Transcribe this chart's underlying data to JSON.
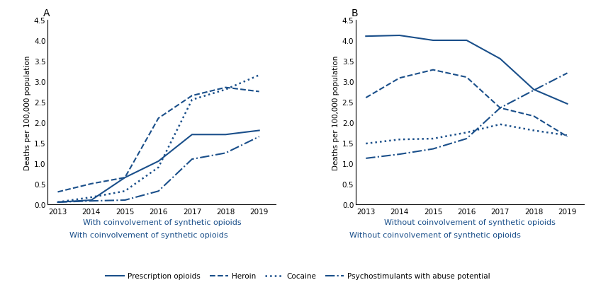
{
  "years": [
    2013,
    2014,
    2015,
    2016,
    2017,
    2018,
    2019
  ],
  "panel_A": {
    "title": "A",
    "xlabel": "With coinvolvement of synthetic opioids",
    "ylabel": "Deaths per 100,000 population",
    "prescription_opioids": [
      0.05,
      0.1,
      0.65,
      1.05,
      1.7,
      1.7,
      1.8
    ],
    "heroin": [
      0.3,
      0.5,
      0.65,
      2.1,
      2.65,
      2.85,
      2.75
    ],
    "cocaine": [
      0.05,
      0.17,
      0.32,
      0.9,
      2.55,
      2.8,
      3.15
    ],
    "psychostimulants": [
      0.05,
      0.08,
      0.1,
      0.32,
      1.1,
      1.25,
      1.65
    ]
  },
  "panel_B": {
    "title": "B",
    "xlabel": "Without coinvolvement of synthetic opioids",
    "ylabel": "Deaths per 100,000 population",
    "prescription_opioids": [
      4.1,
      4.12,
      4.0,
      4.0,
      3.55,
      2.8,
      2.45
    ],
    "heroin": [
      2.6,
      3.08,
      3.28,
      3.1,
      2.35,
      2.15,
      1.65
    ],
    "cocaine": [
      1.48,
      1.58,
      1.6,
      1.75,
      1.95,
      1.8,
      1.68
    ],
    "psychostimulants": [
      1.12,
      1.22,
      1.35,
      1.6,
      2.35,
      2.78,
      3.2
    ]
  },
  "color": "#1a4f8a",
  "ylim": [
    0,
    4.5
  ],
  "yticks": [
    0.0,
    0.5,
    1.0,
    1.5,
    2.0,
    2.5,
    3.0,
    3.5,
    4.0,
    4.5
  ],
  "legend_labels": [
    "Prescription opioids",
    "Heroin",
    "Cocaine",
    "Psychostimulants with abuse potential"
  ],
  "figsize": [
    8.41,
    4.14
  ],
  "dpi": 100
}
